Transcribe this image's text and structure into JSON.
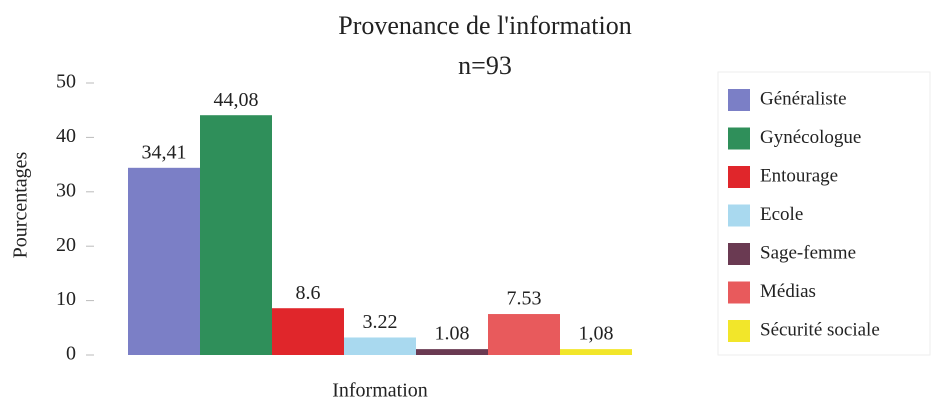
{
  "chart_data": {
    "type": "bar",
    "title": "Provenance de l'information",
    "subtitle": "n=93",
    "x_label": "Information",
    "y_label": "Pourcentages",
    "ylim": [
      0,
      50
    ],
    "yticks": [
      0,
      10,
      20,
      30,
      40,
      50
    ],
    "grid": false,
    "legend": "right",
    "series": [
      {
        "name": "Généraliste",
        "color": "#7b7fc6",
        "values": [
          34.41
        ],
        "value_labels": [
          "34,41"
        ]
      },
      {
        "name": "Gynécologue",
        "color": "#2f8f5a",
        "values": [
          44.08
        ],
        "value_labels": [
          "44,08"
        ]
      },
      {
        "name": "Entourage",
        "color": "#e0262b",
        "values": [
          8.6
        ],
        "value_labels": [
          "8.6"
        ]
      },
      {
        "name": "Ecole",
        "color": "#a9d9ef",
        "values": [
          3.22
        ],
        "value_labels": [
          "3.22"
        ]
      },
      {
        "name": "Sage-femme",
        "color": "#6a3a52",
        "values": [
          1.08
        ],
        "value_labels": [
          "1.08"
        ]
      },
      {
        "name": "Médias",
        "color": "#e85a5c",
        "values": [
          7.53
        ],
        "value_labels": [
          "7.53"
        ]
      },
      {
        "name": "Sécurité sociale",
        "color": "#f2e62a",
        "values": [
          1.08
        ],
        "value_labels": [
          "1,08"
        ]
      }
    ]
  }
}
